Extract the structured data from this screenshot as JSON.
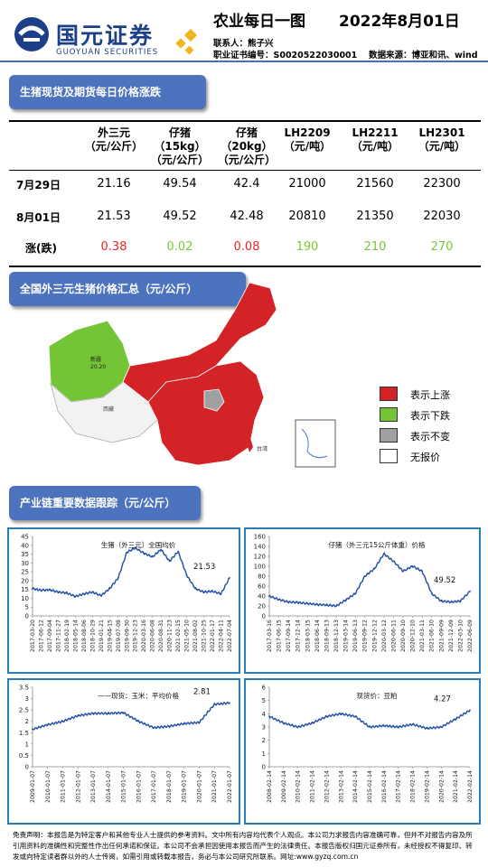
{
  "header": {
    "logo_cn": "国元证券",
    "logo_en": "GUOYUAN SECURITIES",
    "title": "农业每日一图",
    "date": "2022年8月01日",
    "contact": "联系人：熊子兴",
    "license": "职业证书编号：S0020522030001",
    "source": "数据来源：博亚和讯、wind"
  },
  "section1": {
    "title": "生猪现货及期货每日价格涨跌",
    "columns": [
      {
        "l1": "外三元",
        "l2": "（元/公斤）",
        "l3": ""
      },
      {
        "l1": "仔猪",
        "l2": "（15kg）",
        "l3": "（元/公斤）"
      },
      {
        "l1": "仔猪",
        "l2": "（20kg）",
        "l3": "（元/公斤）"
      },
      {
        "l1": "LH2209",
        "l2": "（元/吨）",
        "l3": ""
      },
      {
        "l1": "LH2211",
        "l2": "（元/吨）",
        "l3": ""
      },
      {
        "l1": "LH2301",
        "l2": "（元/吨）",
        "l3": ""
      }
    ],
    "rows": [
      {
        "label": "7月29日",
        "values": [
          "21.16",
          "49.54",
          "42.4",
          "21000",
          "21560",
          "22300"
        ]
      },
      {
        "label": "8月01日",
        "values": [
          "21.53",
          "49.52",
          "42.48",
          "20810",
          "21350",
          "22030"
        ]
      },
      {
        "label": "涨(跌)",
        "values": [
          "0.38",
          "0.02",
          "0.08",
          "190",
          "210",
          "270"
        ]
      }
    ],
    "change_colors": [
      "#e8262a",
      "#7cc43a",
      "#e8262a",
      "#7cc43a",
      "#7cc43a",
      "#7cc43a"
    ]
  },
  "section2": {
    "title": "全国外三元生猪价格汇总（元/公斤）",
    "map_labels": {
      "xinjiang": "新疆",
      "xinjiang_val": "20.20",
      "xizang": "西藏",
      "taiwan": "台湾"
    },
    "legend": [
      {
        "color": "#d42326",
        "label": "表示上涨"
      },
      {
        "color": "#74c535",
        "label": "表示下跌"
      },
      {
        "color": "#a0a0a0",
        "label": "表示不变"
      },
      {
        "color": "#ffffff",
        "label": "无报价"
      }
    ]
  },
  "section3": {
    "title": "产业链重要数据跟踪（元/公斤）"
  },
  "charts": {
    "c1": {
      "title": "生猪（外三元）全国均价",
      "last_label": "21.53"
    },
    "c2": {
      "title": "仔猪（外三元15公斤体重）价格",
      "last_label": "49.52"
    },
    "c3": {
      "title": "——现货：玉米：平均价格",
      "last_label": "2.81"
    },
    "c4": {
      "title": "现货价：豆粕",
      "last_label": "4.27"
    }
  },
  "chart_data": [
    {
      "type": "line",
      "title": "生猪（外三元）全国均价",
      "ylim": [
        0,
        45
      ],
      "yticks": [
        0,
        5,
        10,
        15,
        20,
        25,
        30,
        35,
        40,
        45
      ],
      "categories": [
        "2017-03-20",
        "2017-06-12",
        "2017-09-04",
        "2017-11-27",
        "2018-02-19",
        "2018-05-14",
        "2018-08-06",
        "2018-10-29",
        "2019-01-21",
        "2019-04-15",
        "2019-07-08",
        "2019-09-30",
        "2019-12-23",
        "2020-03-16",
        "2020-06-08",
        "2020-08-31",
        "2020-11-23",
        "2021-02-15",
        "2021-05-10",
        "2021-08-02",
        "2021-10-25",
        "2022-01-17",
        "2022-04-11",
        "2022-07-04"
      ],
      "values": [
        15.5,
        14.5,
        14.8,
        13.5,
        13.0,
        11.0,
        12.5,
        13.5,
        11.5,
        15.5,
        21.5,
        36.0,
        38.5,
        35.5,
        33.5,
        37.5,
        31.0,
        36.5,
        23.0,
        15.5,
        13.5,
        14.0,
        12.5,
        21.53
      ],
      "annotation": "21.53"
    },
    {
      "type": "line",
      "title": "仔猪（外三元15公斤体重）价格",
      "ylim": [
        0,
        160
      ],
      "yticks": [
        0,
        20,
        40,
        60,
        80,
        100,
        120,
        140,
        160
      ],
      "categories": [
        "2017-03-16",
        "2017-06-15",
        "2017-09-14",
        "2017-12-14",
        "2018-03-15",
        "2018-06-14",
        "2018-09-13",
        "2018-12-13",
        "2019-03-14",
        "2019-06-13",
        "2019-09-12",
        "2019-12-12",
        "2020-03-12",
        "2020-06-11",
        "2020-09-10",
        "2020-12-10",
        "2021-03-11",
        "2021-06-10",
        "2021-09-09",
        "2021-12-09",
        "2022-03-10",
        "2022-06-09"
      ],
      "values": [
        40,
        33,
        28,
        27,
        25,
        23,
        22,
        20,
        32,
        45,
        80,
        95,
        125,
        110,
        90,
        100,
        90,
        45,
        30,
        28,
        30,
        49.52
      ],
      "annotation": "49.52"
    },
    {
      "type": "line",
      "title": "现货：玉米：平均价格",
      "ylim": [
        0,
        3.5
      ],
      "yticks": [
        0,
        0.5,
        1,
        1.5,
        2,
        2.5,
        3,
        3.5
      ],
      "categories": [
        "2009-01-07",
        "2010-01-07",
        "2011-01-07",
        "2012-01-07",
        "2013-01-07",
        "2014-01-07",
        "2015-01-07",
        "2016-01-07",
        "2017-01-07",
        "2018-01-07",
        "2019-01-07",
        "2020-01-07",
        "2021-01-07",
        "2022-01-07"
      ],
      "values": [
        1.65,
        1.85,
        2.0,
        2.25,
        2.35,
        2.35,
        2.38,
        2.0,
        1.72,
        1.78,
        1.9,
        1.95,
        2.75,
        2.81
      ],
      "annotation": "2.81"
    },
    {
      "type": "line",
      "title": "现货价：豆粕",
      "ylim": [
        0,
        6
      ],
      "yticks": [
        0,
        1,
        2,
        3,
        4,
        5,
        6
      ],
      "categories": [
        "2008-02-14",
        "2009-02-14",
        "2010-02-14",
        "2011-02-14",
        "2012-02-14",
        "2013-02-14",
        "2014-02-14",
        "2015-02-14",
        "2016-02-14",
        "2017-02-14",
        "2018-02-14",
        "2019-02-14",
        "2020-02-14",
        "2021-02-14",
        "2022-02-14"
      ],
      "values": [
        3.8,
        3.3,
        3.0,
        3.3,
        3.8,
        4.0,
        3.8,
        3.0,
        3.1,
        3.0,
        3.2,
        2.9,
        3.0,
        3.6,
        4.27
      ],
      "annotation": "4.27"
    }
  ],
  "disclaimer": "免责声明：本报告是为特定客户和其他专业人士提供的参考资料。文中所有内容均代表个人观点。本公司力求报告内容准确可靠，但并不对报告内容及所引用资料的准确性和完整性作出任何承诺和保证。本公司不会承担因使用本报告而产生的法律责任。本报告版权归国元证券所有，未经授权不得复印、转发或向特定读者群以外的人士传阅，如需引用或转载本报告，务必与本公司研究所联系。网址:www.gyzq.com.cn"
}
